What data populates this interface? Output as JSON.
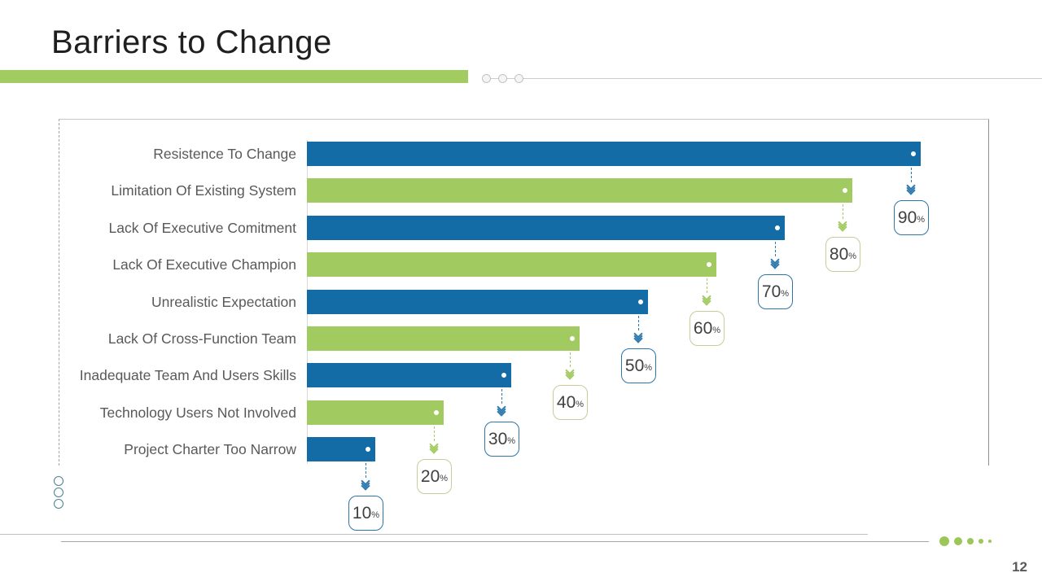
{
  "slide": {
    "title": "Barriers to Change",
    "page_number": "12"
  },
  "chart_data": {
    "type": "bar",
    "orientation": "horizontal",
    "title": "",
    "xlabel": "",
    "ylabel": "",
    "xlim": [
      0,
      100
    ],
    "grid": false,
    "value_suffix": "%",
    "categories": [
      "Resistence To Change",
      "Limitation Of Existing System",
      "Lack Of Executive Comitment",
      "Lack Of Executive Champion",
      "Unrealistic Expectation",
      "Lack Of Cross-Function Team",
      "Inadequate Team And Users Skills",
      "Technology Users Not Involved",
      "Project Charter Too Narrow"
    ],
    "values": [
      90,
      80,
      70,
      60,
      50,
      40,
      30,
      20,
      10
    ],
    "value_labels": [
      "90",
      "80",
      "70",
      "60",
      "50",
      "40",
      "30",
      "20",
      "10"
    ],
    "colors": {
      "bar_blue": "#136ca5",
      "bar_green": "#a1ca60",
      "callout_border_blue": "#2e75a8",
      "callout_border_olive": "#c9cc99",
      "chevron_blue": "#2e79ae",
      "chevron_green": "#a2cb62",
      "category_text": "#595959",
      "value_text": "#404040",
      "accent_green": "#a2cb62"
    }
  }
}
